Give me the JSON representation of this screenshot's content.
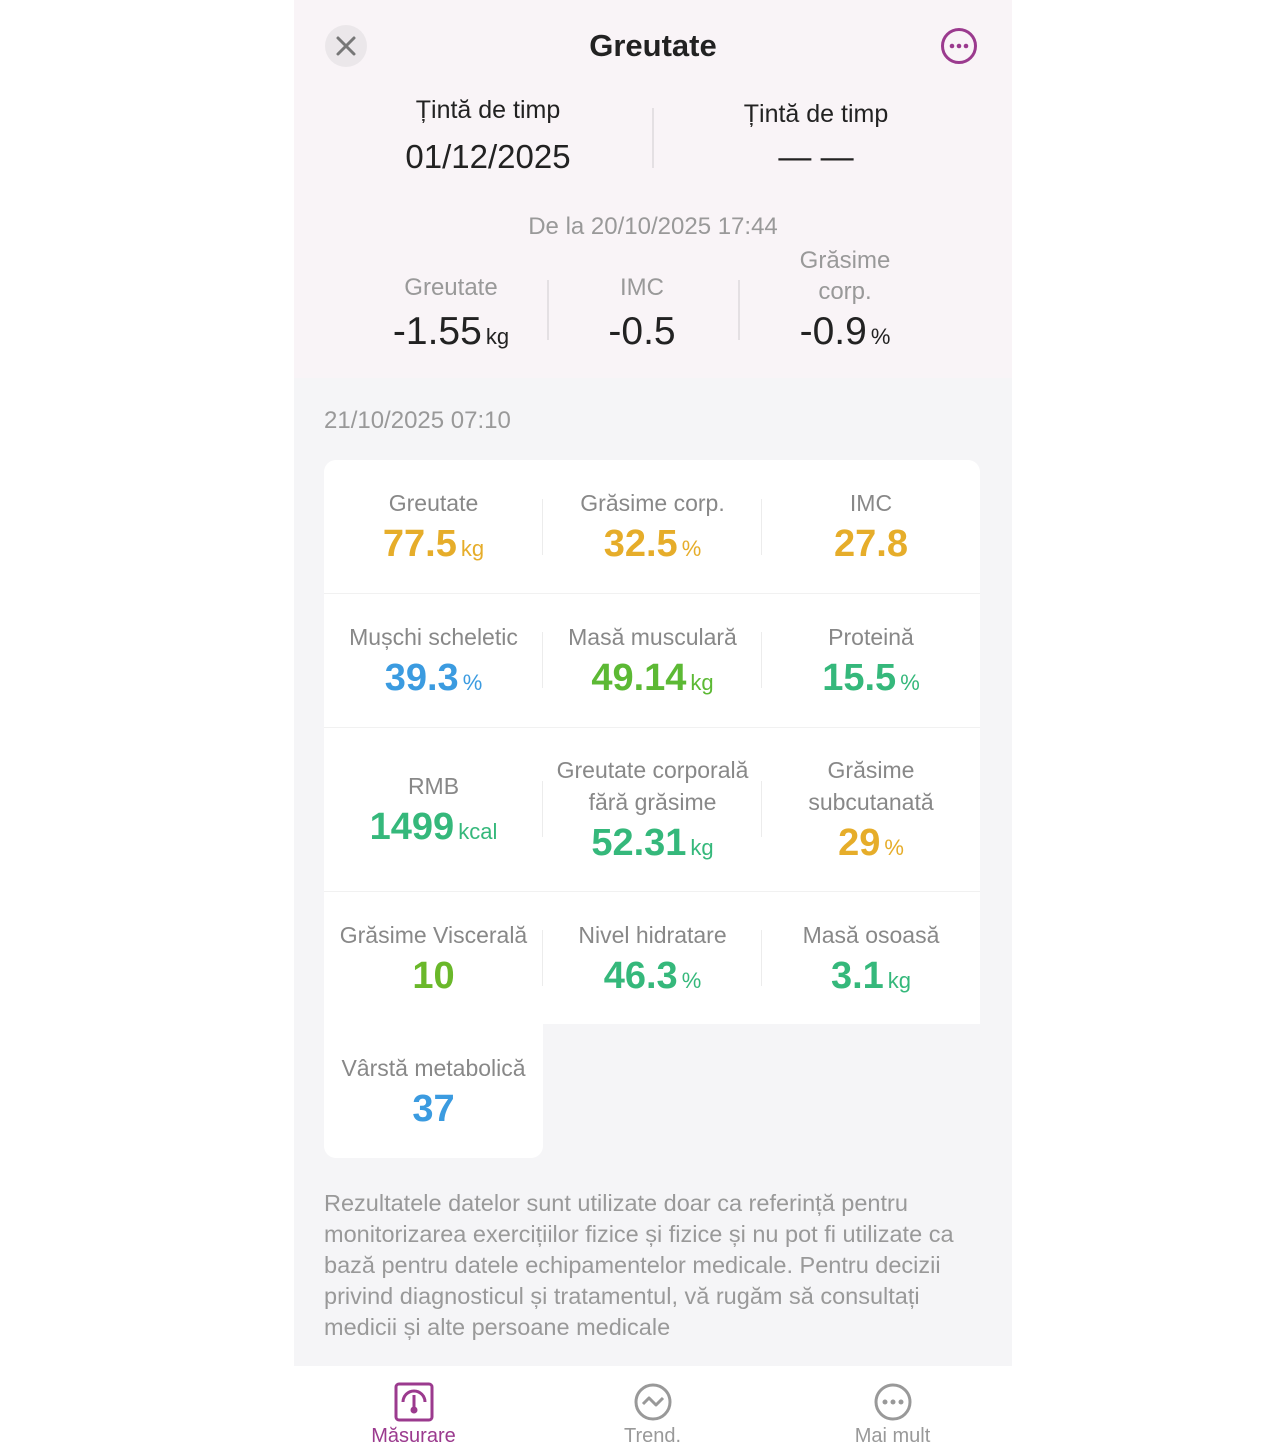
{
  "header": {
    "title": "Greutate"
  },
  "goals": [
    {
      "label": "Țintă de timp",
      "value": "01/12/2025"
    },
    {
      "label": "Țintă de timp",
      "value": "— —"
    }
  ],
  "changes": {
    "since": "De la 20/10/2025 17:44",
    "items": [
      {
        "label": "Greutate",
        "value": "-1.55",
        "unit": "kg"
      },
      {
        "label": "IMC",
        "value": "-0.5"
      },
      {
        "label": "Grăsime corp.",
        "value": "-0.9",
        "unit": "%"
      }
    ]
  },
  "measurement": {
    "date": "21/10/2025 07:10",
    "metrics": [
      {
        "label": "Greutate",
        "value": "77.5",
        "unit": "kg",
        "color": "#e6ad2a"
      },
      {
        "label": "Grăsime corp.",
        "value": "32.5",
        "unit": "%",
        "color": "#e6ad2a"
      },
      {
        "label": "IMC",
        "value": "27.8",
        "color": "#e6ad2a"
      },
      {
        "label": "Mușchi scheletic",
        "value": "39.3",
        "unit": "%",
        "color": "#3b9be0"
      },
      {
        "label": "Masă musculară",
        "value": "49.14",
        "unit": "kg",
        "color": "#5cb934"
      },
      {
        "label": "Proteină",
        "value": "15.5",
        "unit": "%",
        "color": "#35b87b"
      },
      {
        "label": "RMB",
        "value": "1499",
        "unit": "kcal",
        "color": "#35b87b"
      },
      {
        "label": "Greutate corporală fără grăsime",
        "value": "52.31",
        "unit": "kg",
        "color": "#35b87b"
      },
      {
        "label": "Grăsime subcutanată",
        "value": "29",
        "unit": "%",
        "color": "#e6ad2a"
      },
      {
        "label": "Grăsime Viscerală",
        "value": "10",
        "color": "#6ab82a"
      },
      {
        "label": "Nivel hidratare",
        "value": "46.3",
        "unit": "%",
        "color": "#35b87b"
      },
      {
        "label": "Masă osoasă",
        "value": "3.1",
        "unit": "kg",
        "color": "#35b87b"
      },
      {
        "label": "Vârstă metabolică",
        "value": "37",
        "color": "#3b9be0"
      }
    ]
  },
  "disclaimer": "Rezultatele datelor sunt utilizate doar ca referință pentru monitorizarea exercițiilor fizice și fizice și nu pot fi utilizate ca bază pentru datele echipamentelor medicale. Pentru decizii privind diagnosticul și tratamentul, vă rugăm să consultați medicii și alte persoane medicale",
  "nav": [
    {
      "label": "Măsurare"
    },
    {
      "label": "Trend."
    },
    {
      "label": "Mai mult"
    }
  ]
}
